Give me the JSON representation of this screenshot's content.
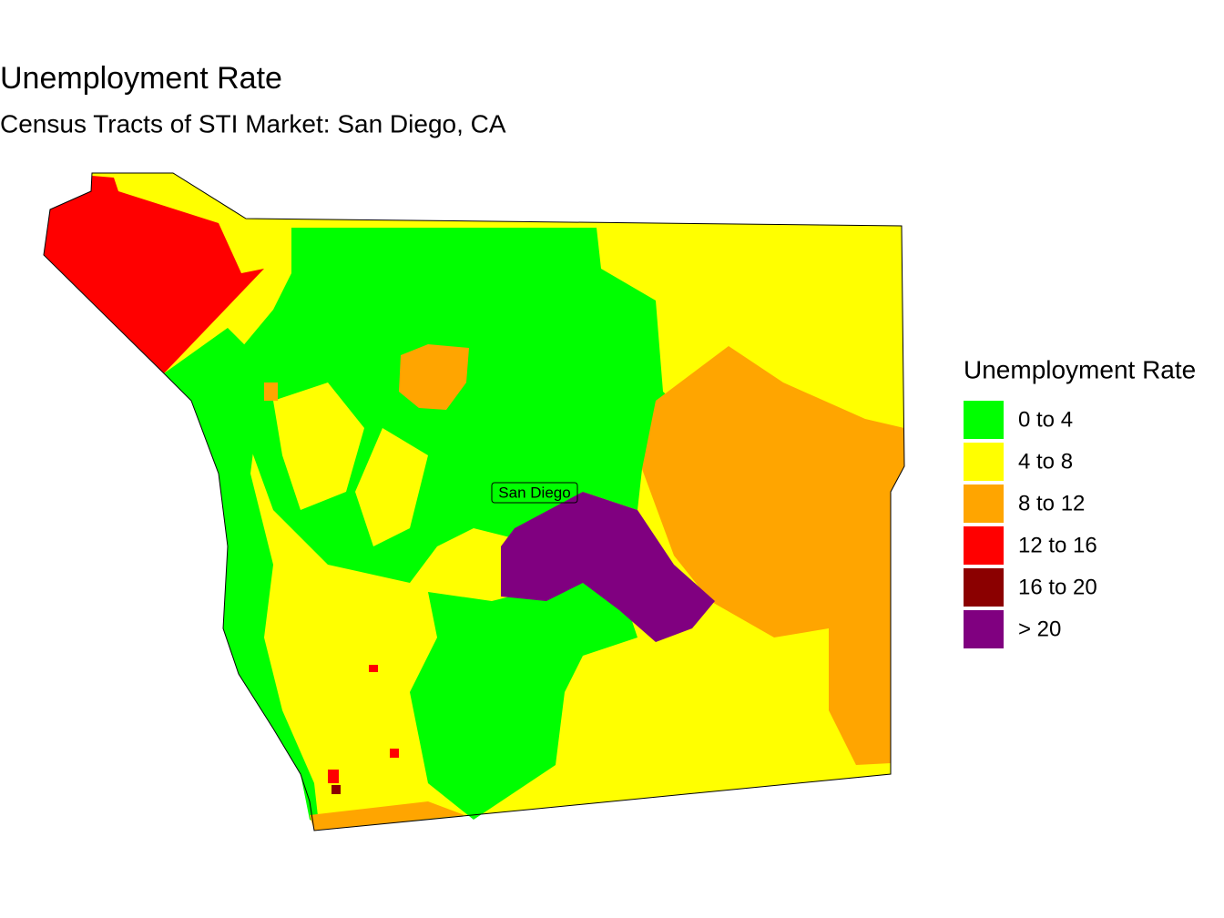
{
  "title": "Unemployment Rate",
  "subtitle": "Census Tracts of STI Market: San Diego, CA",
  "map_label": "San Diego",
  "legend": {
    "title": "Unemployment Rate",
    "items": [
      {
        "label": "0 to 4",
        "color": "#00ff00"
      },
      {
        "label": "4 to 8",
        "color": "#ffff00"
      },
      {
        "label": "8 to 12",
        "color": "#ffa500"
      },
      {
        "label": "12 to 16",
        "color": "#ff0000"
      },
      {
        "label": "16 to 20",
        "color": "#8b0000"
      },
      {
        "label": "> 20",
        "color": "#800080"
      }
    ]
  }
}
